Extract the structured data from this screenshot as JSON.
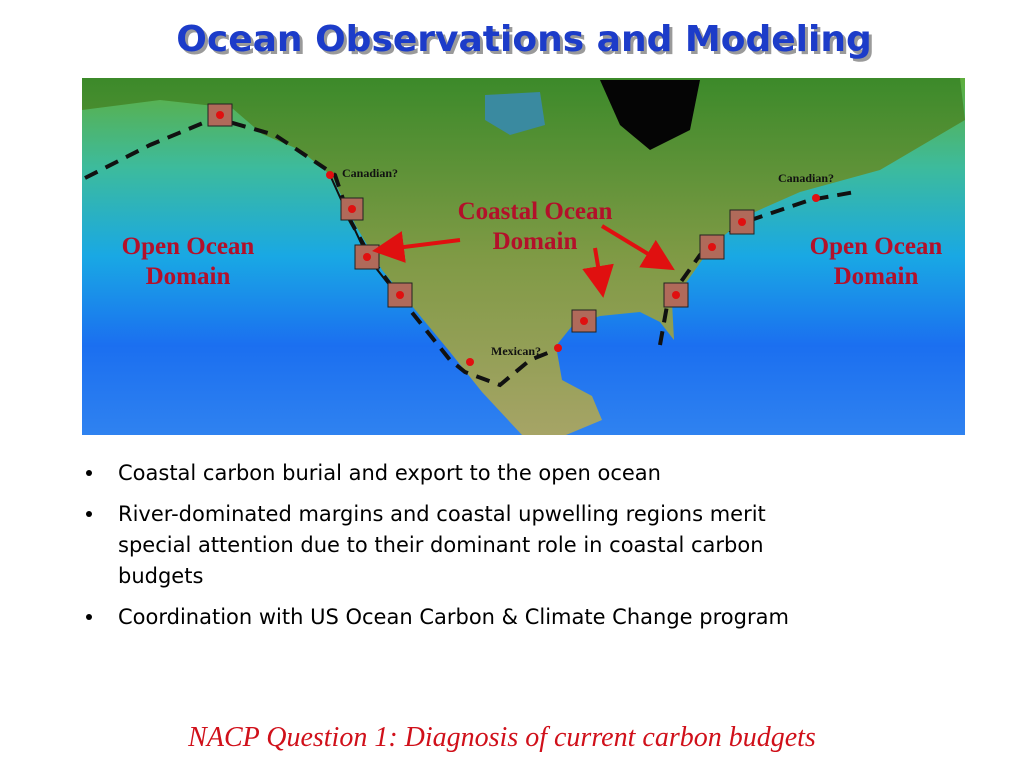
{
  "title": "Ocean Observations and Modeling",
  "map": {
    "labels": [
      {
        "lines": [
          "Open Ocean",
          "Domain"
        ]
      },
      {
        "lines": [
          "Coastal Ocean",
          "Domain"
        ]
      },
      {
        "lines": [
          "Open Ocean",
          "Domain"
        ]
      },
      {
        "lines": [
          "Canadian?"
        ]
      },
      {
        "lines": [
          "Canadian?"
        ]
      },
      {
        "lines": [
          "Mexican?"
        ]
      }
    ]
  },
  "bullets": [
    {
      "lines": [
        "Coastal carbon burial and export to the open ocean"
      ]
    },
    {
      "lines": [
        "River-dominated margins and coastal upwelling regions merit",
        "special attention due to their dominant role in coastal carbon",
        "budgets"
      ]
    },
    {
      "lines": [
        "Coordination with US Ocean Carbon & Climate Change program"
      ]
    }
  ],
  "footer": "NACP Question 1: Diagnosis of current carbon budgets"
}
